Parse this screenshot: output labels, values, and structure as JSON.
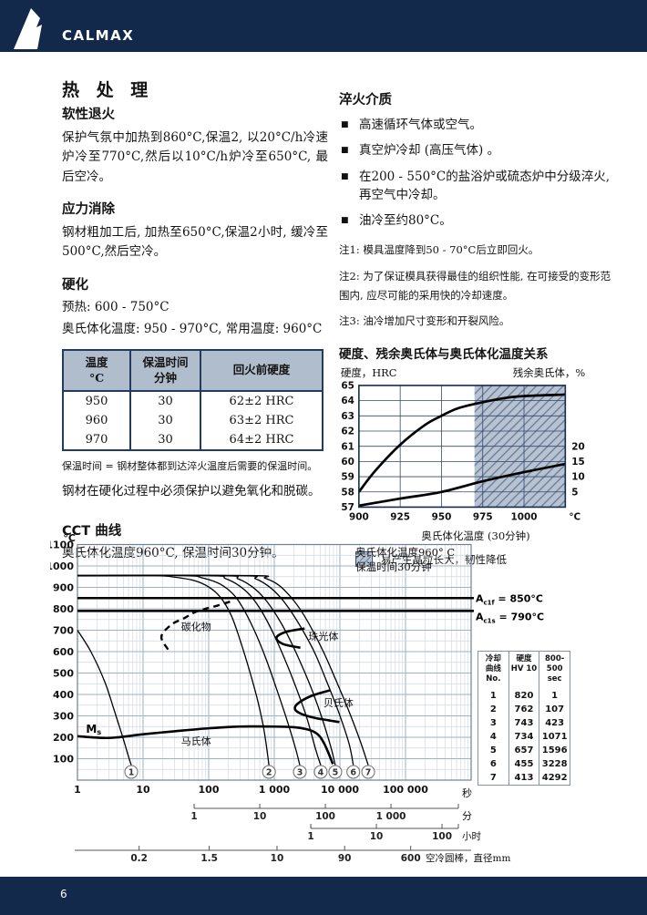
{
  "theme": {
    "navy": "#13294b",
    "table_header_bg": "#b0bdcc",
    "hatch_bg": "#b7c3d3",
    "hatch_line": "#6e7f96"
  },
  "header": {
    "brand": "CALMAX"
  },
  "footer": {
    "page_number": "6"
  },
  "left": {
    "title": "热 处 理",
    "soft_annealing": {
      "heading": "软性退火",
      "body": "保护气氛中加热到860°C,保温2, 以20°C/h冷速炉冷至770°C,然后以10°C/h炉冷至650°C, 最后空冷。"
    },
    "stress_relief": {
      "heading": "应力消除",
      "body": "钢材粗加工后, 加热至650°C,保温2小时, 缓冷至500°C,然后空冷。"
    },
    "hardening": {
      "heading": "硬化",
      "preheat": "预热: 600 - 750°C",
      "austenitizing": "奥氏体化温度: 950 - 970°C, 常用温度: 960°C"
    },
    "temper_table": {
      "headers": [
        [
          "温度",
          "°C"
        ],
        [
          "保温时间",
          "分钟"
        ],
        [
          "回火前硬度",
          ""
        ]
      ],
      "rows": [
        [
          "950",
          "30",
          "62±2 HRC"
        ],
        [
          "960",
          "30",
          "63±2 HRC"
        ],
        [
          "970",
          "30",
          "64±2 HRC"
        ]
      ]
    },
    "holding_note": "保温时间 = 钢材整体都到达淬火温度后需要的保温时间。",
    "protect_note": "钢材在硬化过程中必须保护以避免氧化和脱碳。",
    "cct_heading": "CCT 曲线",
    "cct_subtitle": "奥氏体化温度960°C, 保温时间30分钟。"
  },
  "right": {
    "quench": {
      "heading": "淬火介质",
      "bullets": [
        "高速循环气体或空气。",
        "真空炉冷却 (高压气体) 。",
        "在200 - 550°C的盐浴炉或硫态炉中分级淬火, 再空气中冷却。",
        "油冷至约80°C。"
      ]
    },
    "notes": [
      "注1: 模具温度降到50 - 70°C后立即回火。",
      "注2: 为了保证模具获得最佳的组织性能, 在可接受的变形范围内, 应尽可能的采用快的冷却速度。",
      "注3: 油冷增加尺寸变形和开裂风险。"
    ],
    "hardness_heading": "硬度、残余奥氏体与奥氏体化温度关系"
  },
  "chart_data": [
    {
      "id": "hardness-vs-austenitizing-temperature",
      "type": "line",
      "ylabel_left": "硬度，HRC",
      "ylabel_right": "残余奥氏体，%",
      "xlabel": "奥氏体化温度 (30分钟)",
      "x_unit": "°C",
      "xlim": [
        900,
        1025
      ],
      "x_ticks": [
        900,
        925,
        950,
        975,
        1000
      ],
      "ylim_left": [
        57,
        65
      ],
      "y_ticks_left": [
        57,
        58,
        59,
        60,
        61,
        62,
        63,
        64,
        65
      ],
      "right_ticks": [
        {
          "pct": 5,
          "hrc": 58
        },
        {
          "pct": 10,
          "hrc": 59
        },
        {
          "pct": 15,
          "hrc": 60
        },
        {
          "pct": 20,
          "hrc": 61
        }
      ],
      "shaded_from": 970,
      "legend": "易产生晶粒长大，韧性降低",
      "series": [
        {
          "name": "硬度 HRC",
          "x": [
            900,
            910,
            925,
            940,
            950,
            960,
            975,
            990,
            1000,
            1025
          ],
          "y": [
            58.0,
            59.4,
            61.1,
            62.4,
            63.0,
            63.5,
            63.9,
            64.2,
            64.3,
            64.4
          ]
        },
        {
          "name": "残余奥氏体 %",
          "axis": "right",
          "x": [
            900,
            925,
            950,
            975,
            1000,
            1025
          ],
          "y_pct": [
            0.5,
            2.8,
            5.0,
            8.5,
            11.5,
            14.2
          ]
        }
      ]
    },
    {
      "id": "cct-diagram",
      "type": "line",
      "y_unit": "°C",
      "ylim": [
        0,
        1100
      ],
      "y_ticks": [
        100,
        200,
        300,
        400,
        500,
        600,
        700,
        800,
        900,
        1000,
        1100
      ],
      "x_ticks": [
        {
          "t": 1,
          "label": "1"
        },
        {
          "t": 10,
          "label": "10"
        },
        {
          "t": 100,
          "label": "100"
        },
        {
          "t": 1000,
          "label": "1 000"
        },
        {
          "t": 10000,
          "label": "10 000"
        },
        {
          "t": 100000,
          "label": "100 000"
        }
      ],
      "x_unit_seconds": "秒",
      "x_unit_minutes": "分",
      "x_unit_hours": "小时",
      "annotation": [
        "奥氏体化温度960° C",
        "保温时间30分钟"
      ],
      "ac_lines": [
        {
          "prefix": "A",
          "sub": "c1f",
          "rest": " = 850°C",
          "temp": 850
        },
        {
          "prefix": "A",
          "sub": "c1s",
          "rest": " = 790°C",
          "temp": 790
        }
      ],
      "phase_labels": [
        {
          "text": "碳化物",
          "t": 38,
          "T": 700
        },
        {
          "text": "珠光体",
          "t": 3300,
          "T": 655
        },
        {
          "text": "贝氏体",
          "t": 5600,
          "T": 345
        },
        {
          "text": "马氏体",
          "t": 38,
          "T": 165
        },
        {
          "text": "M",
          "sub": "s",
          "t": 1.35,
          "T": 222,
          "ms": true
        }
      ],
      "cooling_curves": [
        {
          "no": "1",
          "points": [
            [
              1,
              700
            ],
            [
              1.6,
              600
            ],
            [
              2.6,
              460
            ],
            [
              3.6,
              330
            ],
            [
              4.8,
              210
            ],
            [
              6,
              110
            ],
            [
              6.6,
              70
            ]
          ]
        },
        {
          "no": "2",
          "points": [
            [
              1,
              955
            ],
            [
              15,
              955
            ],
            [
              30,
              948
            ],
            [
              60,
              932
            ],
            [
              100,
              902
            ],
            [
              150,
              855
            ],
            [
              220,
              770
            ],
            [
              300,
              655
            ],
            [
              420,
              510
            ],
            [
              560,
              370
            ],
            [
              700,
              230
            ],
            [
              830,
              70
            ]
          ]
        },
        {
          "no": "3",
          "points": [
            [
              1,
              955
            ],
            [
              40,
              955
            ],
            [
              80,
              944
            ],
            [
              150,
              915
            ],
            [
              250,
              860
            ],
            [
              360,
              785
            ],
            [
              520,
              685
            ],
            [
              750,
              565
            ],
            [
              1100,
              420
            ],
            [
              1600,
              270
            ],
            [
              2100,
              150
            ],
            [
              2450,
              70
            ]
          ]
        },
        {
          "no": "4",
          "points": [
            [
              1,
              955
            ],
            [
              100,
              955
            ],
            [
              180,
              941
            ],
            [
              300,
              905
            ],
            [
              460,
              852
            ],
            [
              660,
              782
            ],
            [
              950,
              690
            ],
            [
              1400,
              575
            ],
            [
              2100,
              440
            ],
            [
              3100,
              295
            ],
            [
              4300,
              140
            ],
            [
              5100,
              70
            ]
          ]
        },
        {
          "no": "5",
          "points": [
            [
              1,
              955
            ],
            [
              160,
              955
            ],
            [
              280,
              940
            ],
            [
              460,
              903
            ],
            [
              700,
              850
            ],
            [
              1050,
              775
            ],
            [
              1550,
              685
            ],
            [
              2300,
              575
            ],
            [
              3600,
              435
            ],
            [
              5200,
              300
            ],
            [
              7200,
              160
            ],
            [
              8500,
              70
            ]
          ]
        },
        {
          "no": "6",
          "points": [
            [
              1,
              955
            ],
            [
              300,
              955
            ],
            [
              520,
              940
            ],
            [
              820,
              905
            ],
            [
              1250,
              852
            ],
            [
              1850,
              782
            ],
            [
              2800,
              692
            ],
            [
              4200,
              590
            ],
            [
              6300,
              460
            ],
            [
              9500,
              320
            ],
            [
              13800,
              170
            ],
            [
              16000,
              70
            ]
          ]
        },
        {
          "no": "7",
          "points": [
            [
              1,
              955
            ],
            [
              450,
              955
            ],
            [
              720,
              943
            ],
            [
              1150,
              912
            ],
            [
              1750,
              858
            ],
            [
              2600,
              788
            ],
            [
              3900,
              695
            ],
            [
              5800,
              590
            ],
            [
              8600,
              470
            ],
            [
              13000,
              340
            ],
            [
              20000,
              190
            ],
            [
              27000,
              70
            ]
          ]
        }
      ],
      "ms_curve": [
        [
          1,
          205
        ],
        [
          3,
          197
        ],
        [
          10,
          214
        ],
        [
          30,
          228
        ],
        [
          100,
          242
        ],
        [
          300,
          250
        ],
        [
          1000,
          250
        ],
        [
          2000,
          247
        ],
        [
          3000,
          239
        ],
        [
          4000,
          226
        ],
        [
          5000,
          202
        ],
        [
          6000,
          160
        ],
        [
          7000,
          112
        ],
        [
          7800,
          75
        ]
      ],
      "pearlite_curve": [
        [
          2900,
          708
        ],
        [
          1500,
          692
        ],
        [
          1080,
          665
        ],
        [
          1350,
          636
        ],
        [
          2500,
          618
        ]
      ],
      "bainite_curve": [
        [
          7200,
          420
        ],
        [
          3600,
          392
        ],
        [
          2250,
          356
        ],
        [
          2080,
          330
        ],
        [
          2600,
          309
        ],
        [
          4100,
          291
        ],
        [
          6800,
          279
        ],
        [
          9800,
          271
        ]
      ],
      "carbide_curve": [
        [
          24,
          610
        ],
        [
          19,
          670
        ],
        [
          27,
          726
        ],
        [
          43,
          757
        ],
        [
          65,
          787
        ],
        [
          130,
          813
        ],
        [
          215,
          834
        ]
      ],
      "table": {
        "headers": [
          [
            "冷却",
            "曲线",
            "No."
          ],
          [
            "硬度",
            "HV 10"
          ],
          [
            "800-500",
            "sec"
          ]
        ],
        "rows": [
          [
            "1",
            "820",
            "1"
          ],
          [
            "2",
            "762",
            "107"
          ],
          [
            "3",
            "743",
            "423"
          ],
          [
            "4",
            "734",
            "1071"
          ],
          [
            "5",
            "657",
            "1596"
          ],
          [
            "6",
            "455",
            "3228"
          ],
          [
            "7",
            "413",
            "4292"
          ]
        ]
      },
      "minutes_ticks": [
        {
          "t": 60,
          "label": "1"
        },
        {
          "t": 600,
          "label": "10"
        },
        {
          "t": 6000,
          "label": "100"
        },
        {
          "t": 60000,
          "label": "1 000"
        }
      ],
      "hours_ticks": [
        {
          "t": 3600,
          "label": "1"
        },
        {
          "t": 36000,
          "label": "10"
        },
        {
          "t": 360000,
          "label": "100"
        }
      ],
      "diameter_scale": {
        "caption": "空冷圆棒，直径mm",
        "ticks": [
          {
            "t": 8.7,
            "label": "0.2"
          },
          {
            "t": 102,
            "label": "1.5"
          },
          {
            "t": 1100,
            "label": "10"
          },
          {
            "t": 11800,
            "label": "90"
          },
          {
            "t": 120000,
            "label": "600"
          }
        ]
      }
    }
  ]
}
